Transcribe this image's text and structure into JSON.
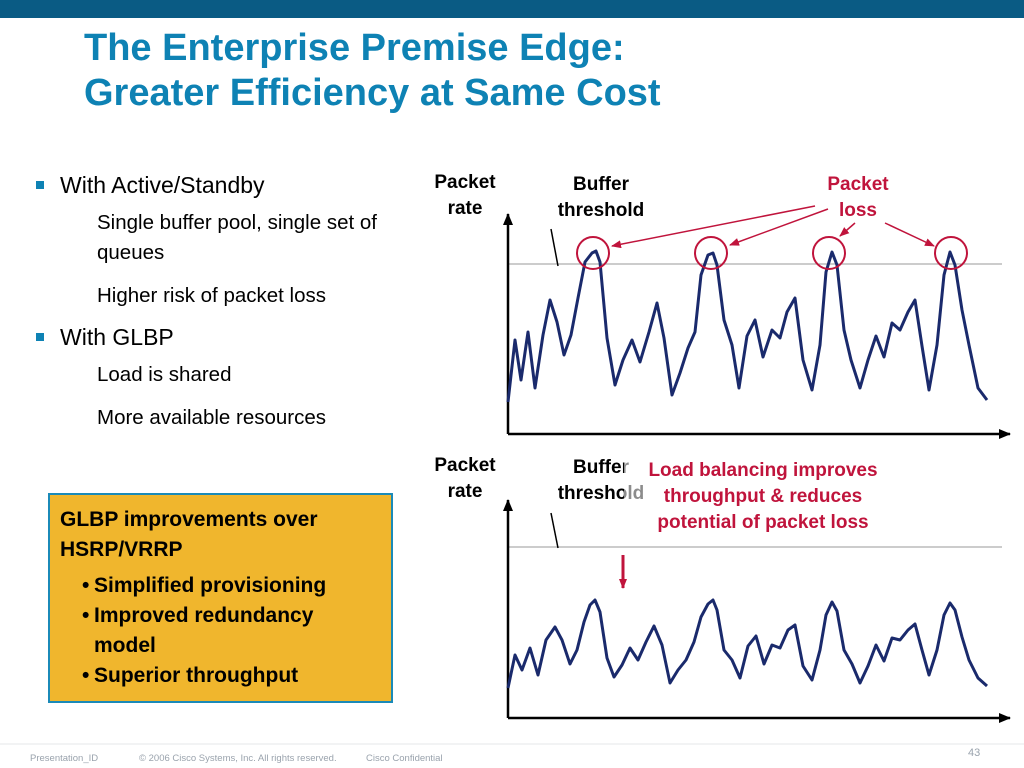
{
  "title": [
    "The Enterprise Premise Edge:",
    "Greater Efficiency at Same Cost"
  ],
  "bullets": [
    {
      "text": "With Active/Standby",
      "subs": [
        "Single buffer pool, single set of queues",
        "Higher risk of packet loss"
      ]
    },
    {
      "text": "With GLBP",
      "subs": [
        "Load is shared",
        "More available resources"
      ]
    }
  ],
  "glbp_box": {
    "heading": "GLBP improvements over HSRP/VRRP",
    "items": [
      "Simplified provisioning",
      "Improved redundancy model",
      "Superior throughput"
    ]
  },
  "top_chart": {
    "y_label": "Packet rate",
    "threshold_label": "Buffer threshold",
    "loss_label": "Packet loss"
  },
  "bottom_chart": {
    "y_label": "Packet rate",
    "threshold_label": "Buffer threshold",
    "callout": "Load balancing improves throughput & reduces potential of packet loss"
  },
  "colors": {
    "title": "#0e82b4",
    "box_fill": "#f0b62d",
    "box_border": "#1b8ab8",
    "callout": "#c0143c",
    "trace": "#1a2a6c"
  },
  "footer": {
    "id": "Presentation_ID",
    "copyright": "© 2006 Cisco Systems, Inc. All rights reserved.",
    "confidential": "Cisco Confidential"
  },
  "page_number": "43"
}
